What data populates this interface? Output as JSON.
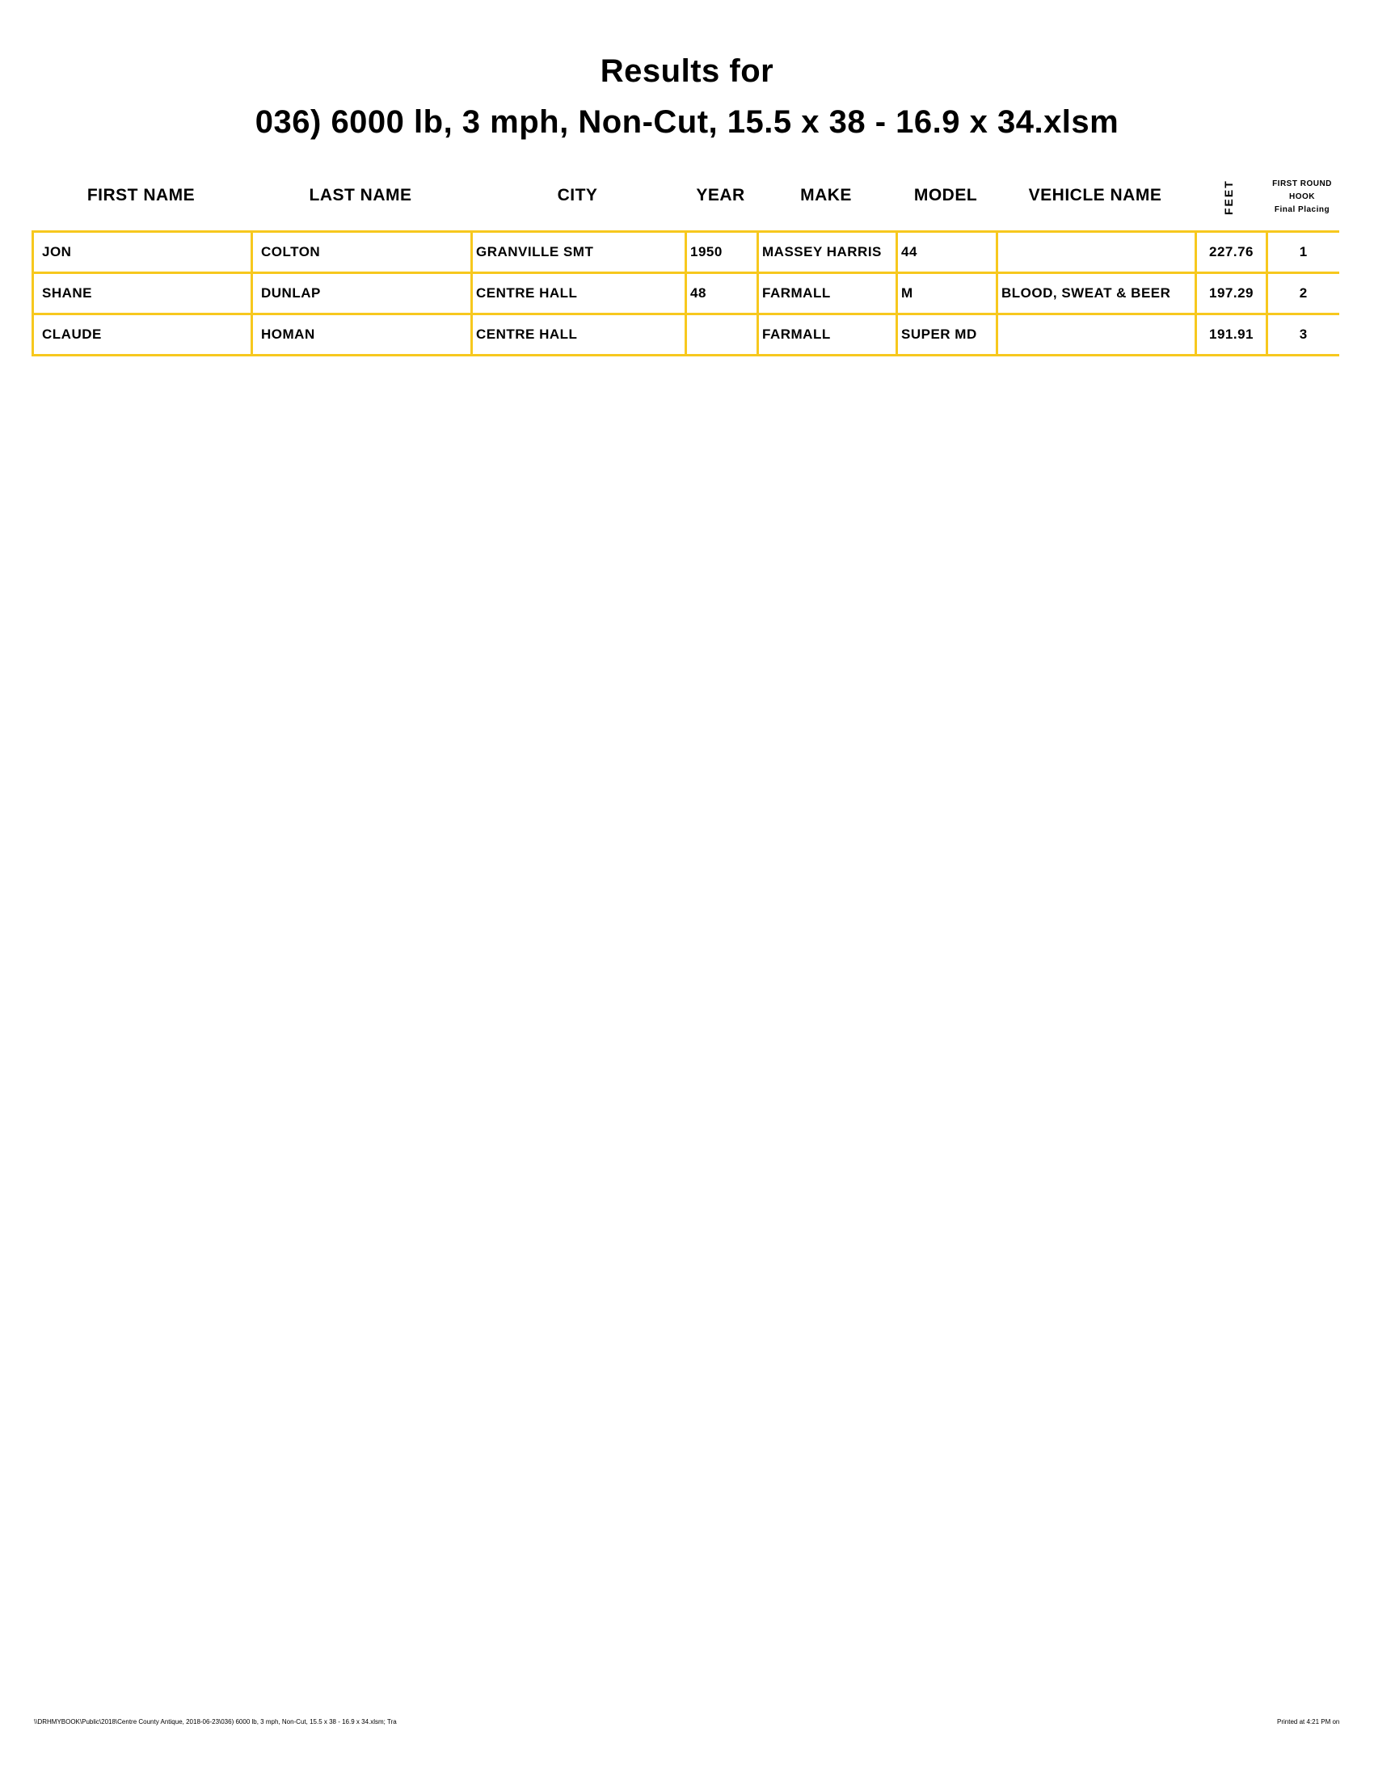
{
  "title": {
    "line1": "Results for",
    "line2": "036) 6000 lb, 3 mph, Non-Cut, 15.5 x 38 - 16.9 x 34.xlsm"
  },
  "columns": {
    "first_name": "FIRST NAME",
    "last_name": "LAST NAME",
    "city": "CITY",
    "year": "YEAR",
    "make": "MAKE",
    "model": "MODEL",
    "vehicle_name": "VEHICLE NAME",
    "feet": "FEET",
    "placing_line1": "FIRST ROUND",
    "placing_line2": "HOOK",
    "placing_line3": "Final Placing"
  },
  "rows": [
    {
      "first_name": "JON",
      "last_name": "COLTON",
      "city": "GRANVILLE SMT",
      "year": "1950",
      "make": "MASSEY HARRIS",
      "model": "44",
      "vehicle_name": "",
      "feet": "227.76",
      "placing": "1"
    },
    {
      "first_name": "SHANE",
      "last_name": "DUNLAP",
      "city": "CENTRE HALL",
      "year": "48",
      "make": "FARMALL",
      "model": "M",
      "vehicle_name": "BLOOD, SWEAT & BEER",
      "feet": "197.29",
      "placing": "2"
    },
    {
      "first_name": "CLAUDE",
      "last_name": "HOMAN",
      "city": "CENTRE HALL",
      "year": "",
      "make": "FARMALL",
      "model": "SUPER MD",
      "vehicle_name": "",
      "feet": "191.91",
      "placing": "3"
    }
  ],
  "footer": {
    "path": "\\\\DRHMYBOOK\\Public\\2018\\Centre County Antique, 2018-06-23\\036) 6000 lb, 3 mph, Non-Cut, 15.5 x 38 - 16.9 x 34.xlsm; Tra",
    "printed": "Printed at 4:21 PM on"
  },
  "colors": {
    "grid": "#f7c81e"
  }
}
